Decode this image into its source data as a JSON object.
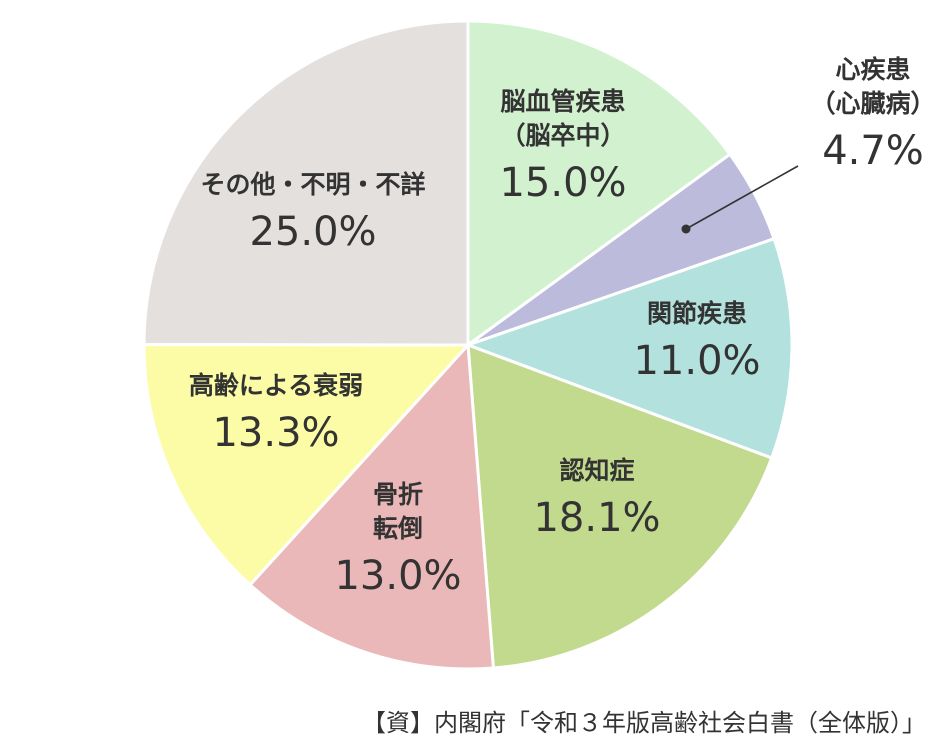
{
  "chart_data": {
    "type": "pie",
    "start_angle_deg": 0,
    "direction": "clockwise",
    "slices": [
      {
        "label": [
          "脳血管疾患",
          "（脳卒中）"
        ],
        "value": 15.0,
        "display": "15.0%",
        "color": "#d2f2cf"
      },
      {
        "label": [
          "心疾患",
          "（心臓病）"
        ],
        "value": 4.7,
        "display": "4.7%",
        "color": "#bdbbdc"
      },
      {
        "label": [
          "関節疾患"
        ],
        "value": 11.0,
        "display": "11.0%",
        "color": "#b3e2de"
      },
      {
        "label": [
          "認知症"
        ],
        "value": 18.1,
        "display": "18.1%",
        "color": "#c2da8e"
      },
      {
        "label": [
          "骨折",
          "転倒"
        ],
        "value": 13.0,
        "display": "13.0%",
        "color": "#eab8b8"
      },
      {
        "label": [
          "高齢による衰弱"
        ],
        "value": 13.3,
        "display": "13.3%",
        "color": "#fcfca6"
      },
      {
        "label": [
          "その他・不明・不詳"
        ],
        "value": 25.0,
        "display": "25.0%",
        "color": "#e4e0de"
      }
    ]
  },
  "source": "【資】内閣府「令和３年版高齢社会白書（全体版）」"
}
